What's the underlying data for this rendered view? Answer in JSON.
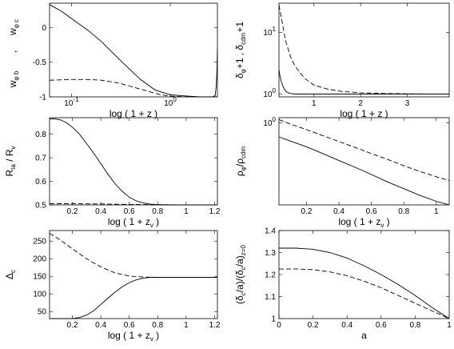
{
  "chart_data": [
    {
      "type": "line",
      "xlabel": "log ( 1 + z )",
      "ylabel_main": "w",
      "ylabel_sub_top": "φ c",
      "ylabel_sub_bottom": "φ b",
      "ylabel_sep": ",",
      "xscale": "log",
      "xlim": [
        0.06,
        3.0
      ],
      "ylim": [
        -1,
        0.35
      ],
      "xticks": [
        {
          "v": 0.1,
          "base": "10",
          "exp": "-1"
        },
        {
          "v": 1,
          "base": "10",
          "exp": "0"
        }
      ],
      "yticks": [
        {
          "v": -1,
          "label": "-1"
        },
        {
          "v": -0.5,
          "label": "-0.5"
        },
        {
          "v": 0,
          "label": "0"
        }
      ],
      "series": [
        {
          "style": "solid",
          "x": [
            0.06,
            0.08,
            0.1,
            0.15,
            0.2,
            0.3,
            0.4,
            0.5,
            0.7,
            1.0,
            1.5,
            2.0,
            2.7,
            2.85,
            2.92,
            2.97,
            3.0
          ],
          "y": [
            0.33,
            0.23,
            0.13,
            -0.05,
            -0.2,
            -0.45,
            -0.62,
            -0.75,
            -0.9,
            -0.97,
            -0.99,
            -1.0,
            -1.0,
            -0.98,
            -0.85,
            -0.6,
            -0.3
          ]
        },
        {
          "style": "dashed",
          "x": [
            0.06,
            0.1,
            0.15,
            0.2,
            0.3,
            0.4,
            0.6,
            0.8,
            1.0,
            1.5,
            2.0,
            3.0
          ],
          "y": [
            -0.76,
            -0.75,
            -0.75,
            -0.76,
            -0.8,
            -0.85,
            -0.92,
            -0.97,
            -0.99,
            -1.0,
            -1.0,
            -1.0
          ]
        }
      ]
    },
    {
      "type": "line",
      "xlabel": "log ( 1 + z )",
      "ylabel_parts": [
        "δ",
        "φ",
        "+1 , δ",
        "cdm",
        "+1"
      ],
      "yscale": "log",
      "xlim": [
        0.25,
        3.9
      ],
      "ylim": [
        0.9,
        30
      ],
      "xticks": [
        {
          "v": 1,
          "label": "1"
        },
        {
          "v": 2,
          "label": "2"
        },
        {
          "v": 3,
          "label": "3"
        }
      ],
      "yticks": [
        {
          "v": 1,
          "base": "10",
          "exp": "0"
        },
        {
          "v": 10,
          "base": "10",
          "exp": "1"
        }
      ],
      "series": [
        {
          "style": "dashed",
          "x": [
            0.25,
            0.3,
            0.35,
            0.4,
            0.5,
            0.6,
            0.8,
            1.0,
            1.3,
            1.6,
            2.0,
            2.5,
            3.0,
            3.5,
            3.9
          ],
          "y": [
            28,
            18,
            11,
            7,
            4,
            2.8,
            1.8,
            1.4,
            1.2,
            1.1,
            1.05,
            1.02,
            1.01,
            1.0,
            1.0
          ]
        },
        {
          "style": "solid",
          "x": [
            0.25,
            0.27,
            0.3,
            0.34,
            0.4,
            0.45,
            0.5,
            0.6,
            1.0,
            2.0,
            3.9
          ],
          "y": [
            2.5,
            2.0,
            1.6,
            1.3,
            1.1,
            1.05,
            1.02,
            1.0,
            1.0,
            1.0,
            1.0
          ]
        }
      ]
    },
    {
      "type": "line",
      "xlabel_main": "log ( 1 + z",
      "xlabel_sub": "v",
      "xlabel_end": " )",
      "ylabel_parts": [
        "R",
        "ta",
        " / R",
        "v"
      ],
      "xlim": [
        0.04,
        1.22
      ],
      "ylim": [
        0.5,
        0.87
      ],
      "xticks": [
        {
          "v": 0.2,
          "label": "0.2"
        },
        {
          "v": 0.4,
          "label": "0.4"
        },
        {
          "v": 0.6,
          "label": "0.6"
        },
        {
          "v": 0.8,
          "label": "0.8"
        },
        {
          "v": 1,
          "label": "1"
        },
        {
          "v": 1.2,
          "label": "1.2"
        }
      ],
      "yticks": [
        {
          "v": 0.5,
          "label": "0.5"
        },
        {
          "v": 0.6,
          "label": "0.6"
        },
        {
          "v": 0.7,
          "label": "0.7"
        },
        {
          "v": 0.8,
          "label": "0.8"
        }
      ],
      "series": [
        {
          "style": "solid",
          "x": [
            0.04,
            0.08,
            0.12,
            0.16,
            0.2,
            0.25,
            0.3,
            0.35,
            0.4,
            0.45,
            0.5,
            0.55,
            0.6,
            0.65,
            0.7,
            0.75,
            0.8,
            0.9,
            1.0,
            1.1,
            1.22
          ],
          "y": [
            0.865,
            0.865,
            0.86,
            0.848,
            0.83,
            0.8,
            0.76,
            0.72,
            0.675,
            0.63,
            0.59,
            0.558,
            0.533,
            0.517,
            0.508,
            0.503,
            0.501,
            0.5,
            0.5,
            0.5,
            0.5
          ]
        },
        {
          "style": "dashed",
          "x": [
            0.04,
            0.2,
            0.4,
            0.6,
            0.8,
            1.0,
            1.22
          ],
          "y": [
            0.505,
            0.505,
            0.504,
            0.502,
            0.501,
            0.5,
            0.5
          ]
        }
      ]
    },
    {
      "type": "line",
      "xlabel_main": "log ( 1 + z",
      "xlabel_sub": "v",
      "xlabel_end": " )",
      "ylabel_parts": [
        "ρ",
        "φ",
        "/ρ",
        "cdm"
      ],
      "yscale": "log",
      "xlim": [
        0.03,
        1.08
      ],
      "ylim": [
        0.03,
        1.25
      ],
      "xticks": [
        {
          "v": 0.2,
          "label": "0.2"
        },
        {
          "v": 0.4,
          "label": "0.4"
        },
        {
          "v": 0.6,
          "label": "0.6"
        },
        {
          "v": 0.8,
          "label": "0.8"
        },
        {
          "v": 1,
          "label": "1"
        }
      ],
      "yticks": [
        {
          "v": 1,
          "base": "10",
          "exp": "0"
        }
      ],
      "series": [
        {
          "style": "dashed",
          "x": [
            0.03,
            0.1,
            0.2,
            0.3,
            0.4,
            0.5,
            0.6,
            0.7,
            0.8,
            0.9,
            1.0,
            1.08
          ],
          "y": [
            1.15,
            0.95,
            0.75,
            0.58,
            0.45,
            0.35,
            0.27,
            0.21,
            0.16,
            0.125,
            0.1,
            0.085
          ]
        },
        {
          "style": "solid",
          "x": [
            0.03,
            0.1,
            0.2,
            0.3,
            0.4,
            0.5,
            0.6,
            0.7,
            0.8,
            0.9,
            1.0,
            1.08
          ],
          "y": [
            0.55,
            0.46,
            0.36,
            0.27,
            0.2,
            0.15,
            0.11,
            0.08,
            0.06,
            0.045,
            0.035,
            0.03
          ]
        }
      ]
    },
    {
      "type": "line",
      "xlabel_main": "log ( 1 + z",
      "xlabel_sub": "v",
      "xlabel_end": " )",
      "ylabel_parts": [
        "Δ",
        "c"
      ],
      "xlim": [
        0.04,
        1.22
      ],
      "ylim": [
        30,
        280
      ],
      "xticks": [
        {
          "v": 0.2,
          "label": "0.2"
        },
        {
          "v": 0.4,
          "label": "0.4"
        },
        {
          "v": 0.6,
          "label": "0.6"
        },
        {
          "v": 0.8,
          "label": "0.8"
        },
        {
          "v": 1,
          "label": "1"
        },
        {
          "v": 1.2,
          "label": "1.2"
        }
      ],
      "yticks": [
        {
          "v": 50,
          "label": "50"
        },
        {
          "v": 100,
          "label": "100"
        },
        {
          "v": 150,
          "label": "150"
        },
        {
          "v": 200,
          "label": "200"
        },
        {
          "v": 250,
          "label": "250"
        }
      ],
      "series": [
        {
          "style": "dashed",
          "x": [
            0.04,
            0.08,
            0.12,
            0.16,
            0.2,
            0.25,
            0.3,
            0.35,
            0.4,
            0.45,
            0.5,
            0.55,
            0.6,
            0.65,
            0.7,
            0.8,
            1.0,
            1.22
          ],
          "y": [
            272,
            262,
            252,
            240,
            228,
            214,
            200,
            188,
            177,
            168,
            160,
            155,
            151,
            149,
            148,
            147,
            147,
            147
          ]
        },
        {
          "style": "solid",
          "x": [
            0.04,
            0.12,
            0.2,
            0.25,
            0.3,
            0.35,
            0.4,
            0.45,
            0.5,
            0.55,
            0.6,
            0.65,
            0.7,
            0.75,
            0.8,
            1.0,
            1.22
          ],
          "y": [
            30,
            30,
            30,
            33,
            40,
            52,
            70,
            88,
            105,
            120,
            132,
            140,
            145,
            147,
            147,
            147,
            147
          ]
        }
      ]
    },
    {
      "type": "line",
      "xlabel": "a",
      "ylabel_parts": [
        "(δ",
        "c",
        "/a)/(δ",
        "c",
        "/a)",
        "z=0"
      ],
      "xlim": [
        0,
        1
      ],
      "ylim": [
        1.0,
        1.4
      ],
      "xticks": [
        {
          "v": 0,
          "label": "0"
        },
        {
          "v": 0.2,
          "label": "0.2"
        },
        {
          "v": 0.4,
          "label": "0.4"
        },
        {
          "v": 0.6,
          "label": "0.6"
        },
        {
          "v": 0.8,
          "label": "0.8"
        },
        {
          "v": 1,
          "label": "1"
        }
      ],
      "yticks": [
        {
          "v": 1,
          "label": "1"
        },
        {
          "v": 1.1,
          "label": "1.1"
        },
        {
          "v": 1.2,
          "label": "1.2"
        },
        {
          "v": 1.3,
          "label": "1.3"
        },
        {
          "v": 1.4,
          "label": "1.4"
        }
      ],
      "series": [
        {
          "style": "solid",
          "x": [
            0,
            0.1,
            0.2,
            0.3,
            0.4,
            0.5,
            0.6,
            0.7,
            0.8,
            0.9,
            1.0
          ],
          "y": [
            1.32,
            1.32,
            1.315,
            1.3,
            1.275,
            1.24,
            1.2,
            1.155,
            1.105,
            1.05,
            1.0
          ]
        },
        {
          "style": "dashed",
          "x": [
            0,
            0.1,
            0.2,
            0.3,
            0.4,
            0.5,
            0.6,
            0.7,
            0.8,
            0.9,
            1.0
          ],
          "y": [
            1.225,
            1.226,
            1.222,
            1.212,
            1.195,
            1.17,
            1.14,
            1.105,
            1.07,
            1.035,
            1.0
          ]
        }
      ]
    }
  ]
}
